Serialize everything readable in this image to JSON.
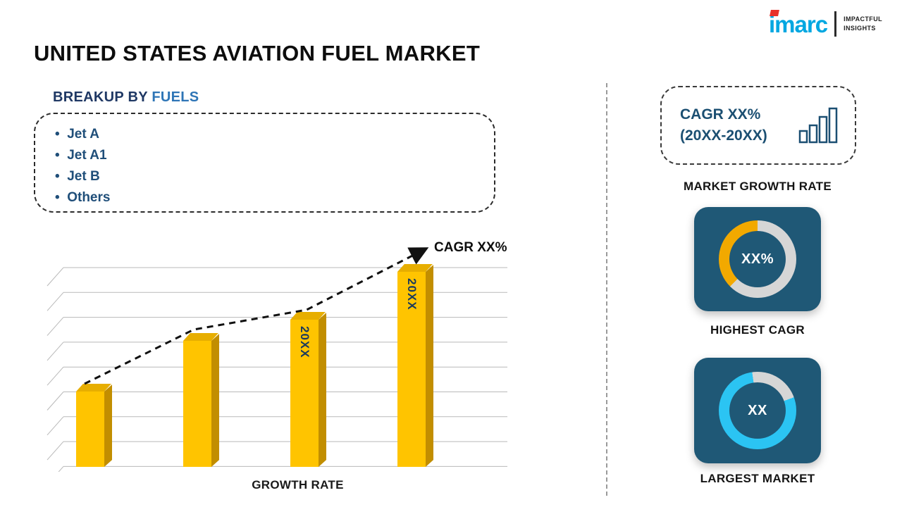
{
  "header": {
    "title": "UNITED STATES AVIATION FUEL MARKET"
  },
  "logo": {
    "brand": "imarc",
    "tagline1": "IMPACTFUL",
    "tagline2": "INSIGHTS"
  },
  "breakup": {
    "heading_prefix": "BREAKUP BY ",
    "heading_highlight": "FUELS",
    "items": [
      "Jet A",
      "Jet A1",
      "Jet B",
      "Others"
    ]
  },
  "chart_data": {
    "type": "bar",
    "title": "GROWTH RATE",
    "categories": [
      "",
      "",
      "20XX",
      "20XX"
    ],
    "values": [
      25,
      42,
      49,
      65
    ],
    "ylim": [
      0,
      68
    ],
    "xlabel": "GROWTH RATE",
    "ylabel": "",
    "grid": true,
    "trend_label": "CAGR XX%",
    "legend": "none"
  },
  "right_panel": {
    "cagr_box": {
      "line1": "CAGR XX%",
      "line2": "(20XX-20XX)"
    },
    "market_growth_label": "MARKET GROWTH RATE",
    "highest_cagr": {
      "center": "XX%",
      "label": "HIGHEST CAGR",
      "accent": "#F2A900"
    },
    "largest_market": {
      "center": "XX",
      "label": "LARGEST MARKET",
      "accent": "#2BC4F3"
    }
  },
  "colors": {
    "bar_front": "#FFC400",
    "bar_side": "#C28E00",
    "bar_top": "#E7AE00",
    "navy_card": "#1F5876",
    "ring_gray": "#D6D6D6",
    "brand_cyan": "#00A7E1",
    "brand_red": "#E8312A",
    "text_navy": "#1B4F72"
  }
}
